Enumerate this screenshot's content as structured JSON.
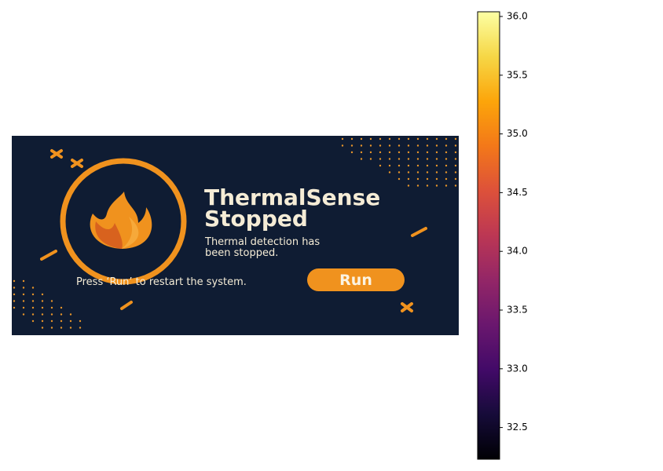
{
  "banner": {
    "title": [
      "ThermalSense",
      "Stopped"
    ],
    "message": [
      "Thermal detection has",
      "been stopped."
    ],
    "hint": "Press ‘Run’ to restart the system.",
    "button": "Run"
  },
  "colorbar": {
    "lim": [
      32.23,
      36.04
    ],
    "ticks": [
      32.5,
      {
        "value": 33.0,
        "label": "33.0"
      },
      33.5,
      {
        "value": 34.0,
        "label": "34.0"
      },
      34.5,
      {
        "value": 35.0,
        "label": "35.0"
      },
      35.5,
      {
        "value": 36.0,
        "label": "36.0"
      }
    ]
  }
}
